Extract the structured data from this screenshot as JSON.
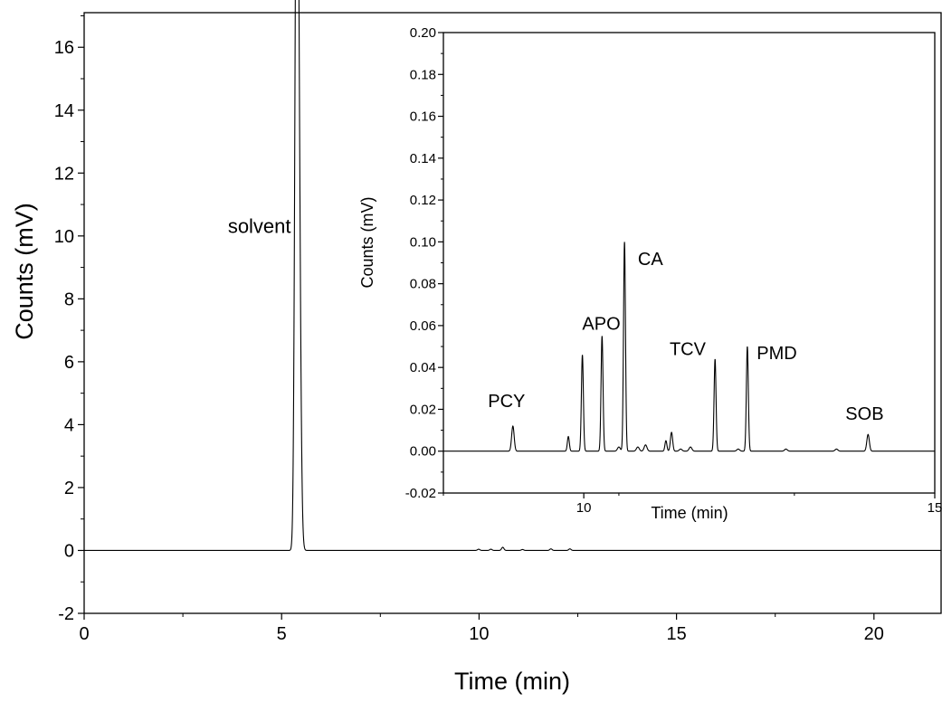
{
  "chart_data": [
    {
      "id": "main",
      "type": "line",
      "xlabel": "Time (min)",
      "ylabel": "Counts (mV)",
      "xlim": [
        0,
        21.7
      ],
      "ylim": [
        -2,
        17.1
      ],
      "xticks": [
        0,
        5,
        10,
        15,
        20
      ],
      "xtick_labels": [
        "0",
        "5",
        "10",
        "15",
        "20"
      ],
      "yticks": [
        -2,
        0,
        2,
        4,
        6,
        8,
        10,
        12,
        14,
        16
      ],
      "ytick_labels": [
        "-2",
        "0",
        "2",
        "4",
        "6",
        "8",
        "10",
        "12",
        "14",
        "16"
      ],
      "grid": false,
      "line_color": "#000000",
      "baseline": 0,
      "peaks": [
        {
          "time": 5.37,
          "height": 14.6,
          "width": 0.04
        },
        {
          "time": 5.42,
          "height": 15.55,
          "width": 0.05
        },
        {
          "time": 9.99,
          "height": 0.04,
          "width": 0.03
        },
        {
          "time": 10.3,
          "height": 0.04,
          "width": 0.03
        },
        {
          "time": 10.6,
          "height": 0.1,
          "width": 0.03
        },
        {
          "time": 11.1,
          "height": 0.03,
          "width": 0.03
        },
        {
          "time": 11.82,
          "height": 0.05,
          "width": 0.03
        },
        {
          "time": 12.3,
          "height": 0.05,
          "width": 0.03
        }
      ],
      "annotations": [
        {
          "text": "solvent",
          "x": 5.42,
          "y": 10.1
        }
      ]
    },
    {
      "id": "inset",
      "type": "line",
      "xlabel": "Time (min)",
      "ylabel": "Counts (mV)",
      "xlim": [
        8.0,
        15.0
      ],
      "ylim": [
        -0.02,
        0.2
      ],
      "xticks": [
        10,
        15
      ],
      "xtick_labels": [
        "10",
        "15"
      ],
      "yticks": [
        -0.02,
        0.0,
        0.02,
        0.04,
        0.06,
        0.08,
        0.1,
        0.12,
        0.14,
        0.16,
        0.18,
        0.2
      ],
      "ytick_labels": [
        "-0.02",
        "0.00",
        "0.02",
        "0.04",
        "0.06",
        "0.08",
        "0.10",
        "0.12",
        "0.14",
        "0.16",
        "0.18",
        "0.20"
      ],
      "grid": false,
      "line_color": "#000000",
      "baseline": 0,
      "peaks": [
        {
          "time": 8.99,
          "height": 0.012,
          "width": 0.018
        },
        {
          "time": 9.78,
          "height": 0.007,
          "width": 0.014
        },
        {
          "time": 9.98,
          "height": 0.046,
          "width": 0.014
        },
        {
          "time": 10.26,
          "height": 0.055,
          "width": 0.014
        },
        {
          "time": 10.5,
          "height": 0.002,
          "width": 0.02
        },
        {
          "time": 10.58,
          "height": 0.1,
          "width": 0.014
        },
        {
          "time": 10.77,
          "height": 0.002,
          "width": 0.02
        },
        {
          "time": 10.88,
          "height": 0.003,
          "width": 0.02
        },
        {
          "time": 11.17,
          "height": 0.005,
          "width": 0.014
        },
        {
          "time": 11.25,
          "height": 0.009,
          "width": 0.016
        },
        {
          "time": 11.38,
          "height": 0.001,
          "width": 0.02
        },
        {
          "time": 11.52,
          "height": 0.002,
          "width": 0.02
        },
        {
          "time": 11.87,
          "height": 0.044,
          "width": 0.014
        },
        {
          "time": 12.2,
          "height": 0.001,
          "width": 0.02
        },
        {
          "time": 12.33,
          "height": 0.05,
          "width": 0.014
        },
        {
          "time": 12.88,
          "height": 0.001,
          "width": 0.02
        },
        {
          "time": 13.6,
          "height": 0.001,
          "width": 0.02
        },
        {
          "time": 14.05,
          "height": 0.008,
          "width": 0.018
        }
      ],
      "peak_labels": [
        {
          "text": "PCY",
          "x": 8.9,
          "y": 0.021
        },
        {
          "text": "APO",
          "x": 10.25,
          "y": 0.058
        },
        {
          "text": "CA",
          "x": 10.95,
          "y": 0.089
        },
        {
          "text": "TCV",
          "x": 11.48,
          "y": 0.046
        },
        {
          "text": "PMD",
          "x": 12.75,
          "y": 0.044
        },
        {
          "text": "SOB",
          "x": 14.0,
          "y": 0.015
        }
      ]
    }
  ]
}
